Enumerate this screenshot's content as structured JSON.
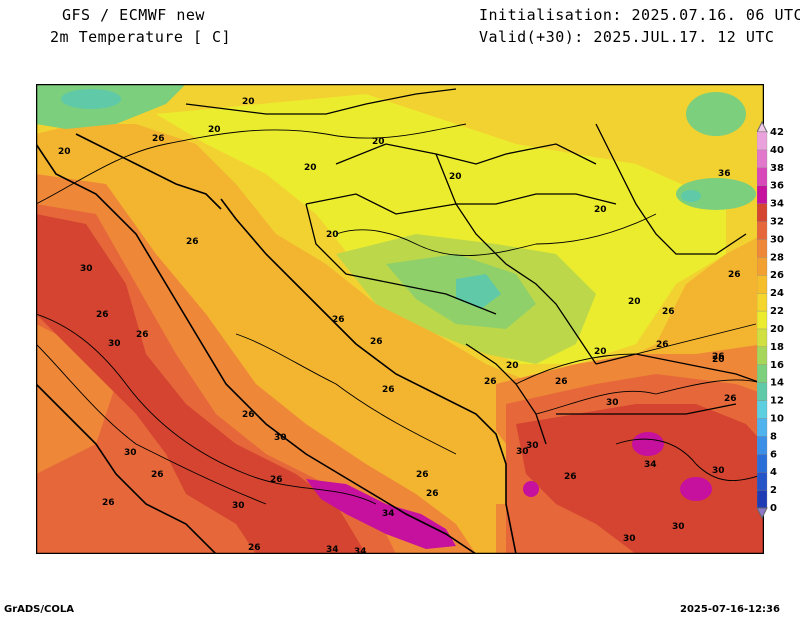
{
  "header": {
    "model": "GFS / ECMWF new",
    "field": "2m Temperature [ C]",
    "init": "Initialisation: 2025.07.16. 06 UTC",
    "valid": "Valid(+30): 2025.JUL.17. 12 UTC"
  },
  "footer": {
    "left": "GrADS/COLA",
    "right": "2025-07-16-12:36"
  },
  "legend": {
    "levels": [
      "0",
      "2",
      "4",
      "6",
      "8",
      "10",
      "12",
      "14",
      "16",
      "18",
      "20",
      "22",
      "24",
      "26",
      "28",
      "30",
      "32",
      "34",
      "36",
      "38",
      "40",
      "42"
    ],
    "colors": [
      "#1f3cb4",
      "#2553c8",
      "#2a6fd8",
      "#3b8fe6",
      "#4fb4ee",
      "#5ccfe0",
      "#5fc9a8",
      "#7ccf7c",
      "#a6d65a",
      "#cfe040",
      "#ecec2e",
      "#f5d62c",
      "#f6be2a",
      "#f2a032",
      "#ee8738",
      "#e6683a",
      "#d44430",
      "#c6109e",
      "#d848b8",
      "#e278cc",
      "#eaa2dc",
      "#f0c8ea"
    ]
  },
  "contour_labels": [
    "20",
    "20",
    "20",
    "20",
    "20",
    "20",
    "20",
    "20",
    "20",
    "20",
    "20",
    "20",
    "26",
    "26",
    "26",
    "26",
    "26",
    "26",
    "26",
    "26",
    "26",
    "26",
    "26",
    "26",
    "26",
    "26",
    "26",
    "26",
    "26",
    "26",
    "26",
    "26",
    "26",
    "26",
    "30",
    "30",
    "30",
    "30",
    "30",
    "30",
    "30",
    "30",
    "30",
    "30",
    "30",
    "34",
    "34",
    "34",
    "34",
    "36"
  ]
}
